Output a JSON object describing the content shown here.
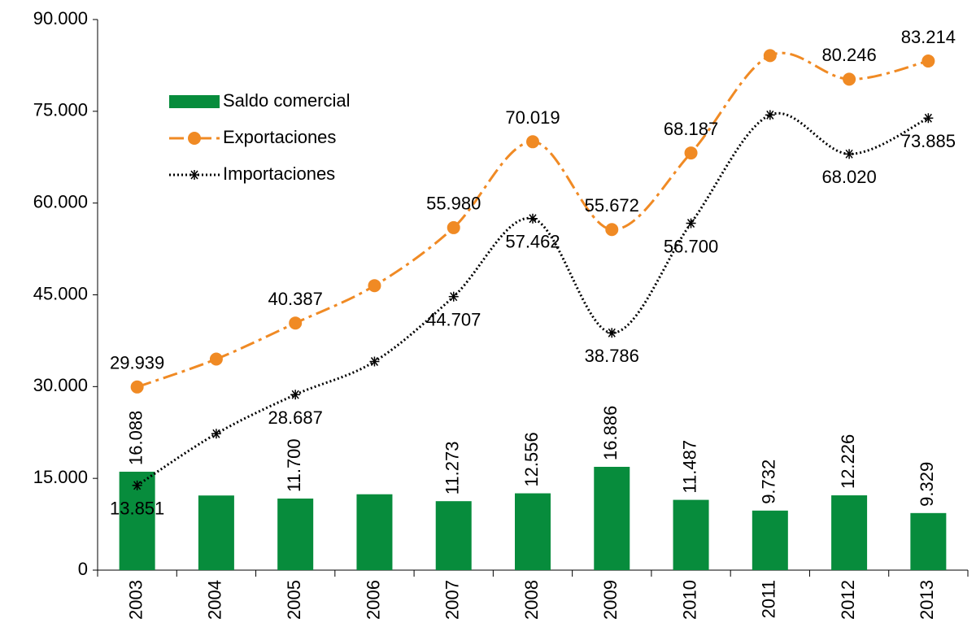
{
  "chart_data": {
    "type": "combo",
    "categories": [
      "2003",
      "2004",
      "2005",
      "2006",
      "2007",
      "2008",
      "2009",
      "2010",
      "2011",
      "2012",
      "2013"
    ],
    "series": [
      {
        "name": "Saldo comercial",
        "type": "bar",
        "color": "#078c3c",
        "values": [
          16088,
          12200,
          11700,
          12400,
          11273,
          12556,
          16886,
          11487,
          9732,
          12226,
          9329
        ],
        "value_labels": [
          "16.088",
          null,
          "11.700",
          null,
          "11.273",
          "12.556",
          "16.886",
          "11.487",
          "9.732",
          "12.226",
          "9.329"
        ]
      },
      {
        "name": "Exportaciones",
        "type": "line",
        "color": "#f08a24",
        "marker": "circle",
        "dash": "dashdot",
        "values": [
          29939,
          34500,
          40387,
          46500,
          55980,
          70019,
          55672,
          68187,
          84100,
          80246,
          83214
        ],
        "value_labels": [
          "29.939",
          null,
          "40.387",
          null,
          "55.980",
          "70.019",
          "55.672",
          "68.187",
          null,
          "80.246",
          "83.214"
        ]
      },
      {
        "name": "Importaciones",
        "type": "line",
        "color": "#000000",
        "marker": "asterisk",
        "dash": "dotted",
        "values": [
          13851,
          22300,
          28687,
          34100,
          44707,
          57462,
          38786,
          56700,
          74400,
          68020,
          73885
        ],
        "value_labels": [
          "13.851",
          null,
          "28.687",
          null,
          "44.707",
          "57.462",
          "38.786",
          "56.700",
          null,
          "68.020",
          "73.885"
        ]
      }
    ],
    "ylim": [
      0,
      90000
    ],
    "yticks": [
      0,
      {
        "value": 15000,
        "label": "15.000"
      },
      {
        "value": 30000,
        "label": "30.000"
      },
      {
        "value": 45000,
        "label": "45.000"
      },
      {
        "value": 60000,
        "label": "60.000"
      },
      {
        "value": 75000,
        "label": "75.000"
      },
      {
        "value": 90000,
        "label": "90.000"
      }
    ],
    "legend": "upper left",
    "grid": false
  }
}
